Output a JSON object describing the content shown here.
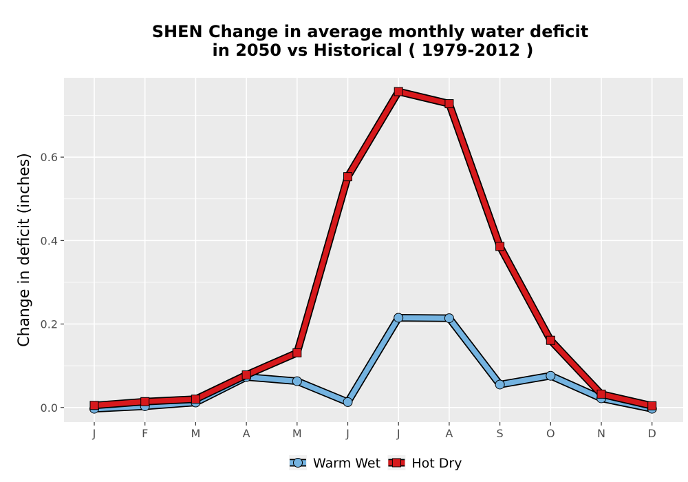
{
  "chart_data": {
    "type": "line",
    "title_line1": "SHEN  Change in average monthly water deficit",
    "title_line2": "in 2050 vs Historical ( 1979-2012 )",
    "xlabel": "",
    "ylabel": "Change in deficit (inches)",
    "categories": [
      "J",
      "F",
      "M",
      "A",
      "M",
      "J",
      "J",
      "A",
      "S",
      "O",
      "N",
      "D"
    ],
    "ylim": [
      -0.035,
      0.79
    ],
    "yticks": [
      0.0,
      0.2,
      0.4,
      0.6
    ],
    "ytick_labels": [
      "0.0",
      "0.2",
      "0.4",
      "0.6"
    ],
    "grid": true,
    "legend_position": "bottom",
    "series": [
      {
        "name": "Warm Wet",
        "marker": "circle",
        "color": "#74b3e0",
        "values": [
          -0.003,
          0.003,
          0.012,
          0.073,
          0.063,
          0.013,
          0.215,
          0.214,
          0.055,
          0.076,
          0.022,
          -0.003
        ]
      },
      {
        "name": "Hot Dry",
        "marker": "square",
        "color": "#d7191c",
        "values": [
          0.005,
          0.014,
          0.02,
          0.078,
          0.131,
          0.553,
          0.757,
          0.728,
          0.386,
          0.161,
          0.032,
          0.004
        ]
      }
    ]
  }
}
